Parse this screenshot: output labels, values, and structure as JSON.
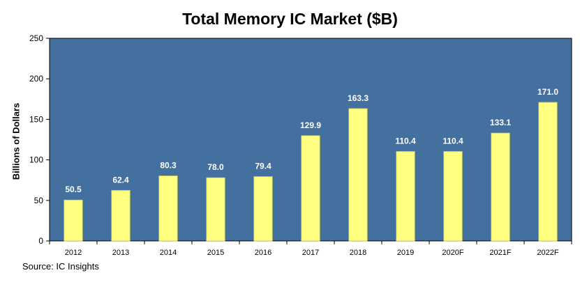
{
  "chart_data": {
    "type": "bar",
    "title": "Total Memory IC Market ($B)",
    "ylabel": "Billions of Dollars",
    "xlabel": "",
    "ylim": [
      0,
      250
    ],
    "yticks": [
      0,
      50,
      100,
      150,
      200,
      250
    ],
    "categories": [
      "2012",
      "2013",
      "2014",
      "2015",
      "2016",
      "2017",
      "2018",
      "2019",
      "2020F",
      "2021F",
      "2022F"
    ],
    "values": [
      50.5,
      62.4,
      80.3,
      78.0,
      79.4,
      129.9,
      163.3,
      110.4,
      110.4,
      133.1,
      171.0
    ],
    "value_labels": [
      "50.5",
      "62.4",
      "80.3",
      "78.0",
      "79.4",
      "129.9",
      "163.3",
      "110.4",
      "110.4",
      "133.1",
      "171.0"
    ],
    "grid": false,
    "colors": {
      "plot_bg": "#44709f",
      "bar": "#ffff80",
      "bar_stroke": "#c8c85a",
      "data_label": "#ffffff"
    }
  },
  "source": "Source:  IC Insights"
}
